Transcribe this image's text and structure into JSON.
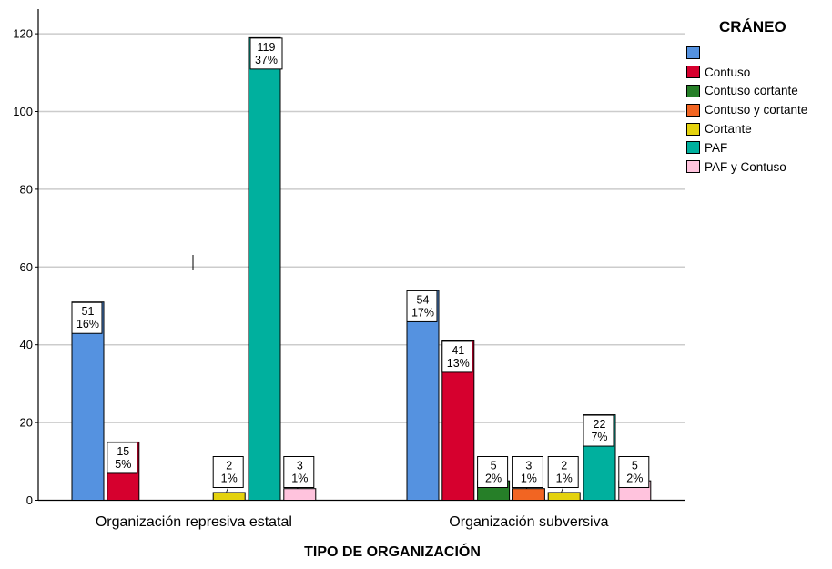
{
  "chart_data": {
    "type": "bar",
    "title": "",
    "xlabel": "TIPO DE ORGANIZACIÓN",
    "ylabel": "",
    "ylim": [
      0,
      125
    ],
    "yticks": [
      0,
      20,
      40,
      60,
      80,
      100,
      120
    ],
    "grid": true,
    "legend_title": "CRÁNEO",
    "legend_position": "right",
    "categories": [
      "Organización represiva estatal",
      "Organización subversiva"
    ],
    "series": [
      {
        "name": "",
        "color": "#5592e0",
        "values": [
          51,
          54
        ],
        "labels": [
          [
            "51",
            "16%"
          ],
          [
            "54",
            "17%"
          ]
        ]
      },
      {
        "name": "Contuso",
        "color": "#d6002e",
        "values": [
          15,
          41
        ],
        "labels": [
          [
            "15",
            "5%"
          ],
          [
            "41",
            "13%"
          ]
        ]
      },
      {
        "name": "Contuso cortante",
        "color": "#267f28",
        "values": [
          0,
          5
        ],
        "labels": [
          null,
          [
            "5",
            "2%"
          ]
        ]
      },
      {
        "name": "Contuso y cortante",
        "color": "#f26522",
        "values": [
          0,
          3
        ],
        "labels": [
          null,
          [
            "3",
            "1%"
          ]
        ]
      },
      {
        "name": "Cortante",
        "color": "#e4d20e",
        "values": [
          2,
          2
        ],
        "labels": [
          [
            "2",
            "1%"
          ],
          [
            "2",
            "1%"
          ]
        ]
      },
      {
        "name": "PAF",
        "color": "#00b09e",
        "values": [
          119,
          22
        ],
        "labels": [
          [
            "119",
            "37%"
          ],
          [
            "22",
            "7%"
          ]
        ]
      },
      {
        "name": "PAF y Contuso",
        "color": "#ffc3dd",
        "values": [
          3,
          5
        ],
        "labels": [
          [
            "3",
            "1%"
          ],
          [
            "5",
            "2%"
          ]
        ]
      }
    ]
  }
}
